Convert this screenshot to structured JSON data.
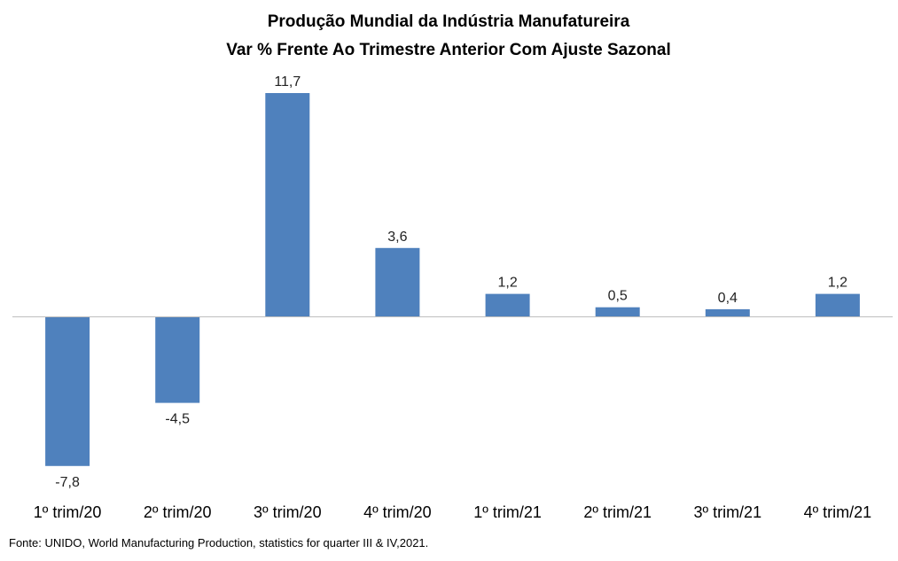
{
  "chart_data": {
    "type": "bar",
    "title": "Produção Mundial da Indústria Manufatureira",
    "subtitle": "Var % Frente Ao Trimestre Anterior Com Ajuste Sazonal",
    "categories": [
      "1º trim/20",
      "2º trim/20",
      "3º trim/20",
      "4º trim/20",
      "1º trim/21",
      "2º trim/21",
      "3º trim/21",
      "4º trim/21"
    ],
    "values": [
      -7.8,
      -4.5,
      11.7,
      3.6,
      1.2,
      0.5,
      0.4,
      1.2
    ],
    "data_labels": [
      "-7,8",
      "-4,5",
      "11,7",
      "3,6",
      "1,2",
      "0,5",
      "0,4",
      "1,2"
    ],
    "xlabel": "",
    "ylabel": "",
    "ylim": [
      -7.8,
      11.7
    ],
    "grid": false,
    "legend": "none",
    "bar_color": "#4f81bd",
    "axis_color": "#bfbfbf",
    "source": "Fonte: UNIDO, World Manufacturing Production,  statistics for quarter  III & IV,2021."
  }
}
